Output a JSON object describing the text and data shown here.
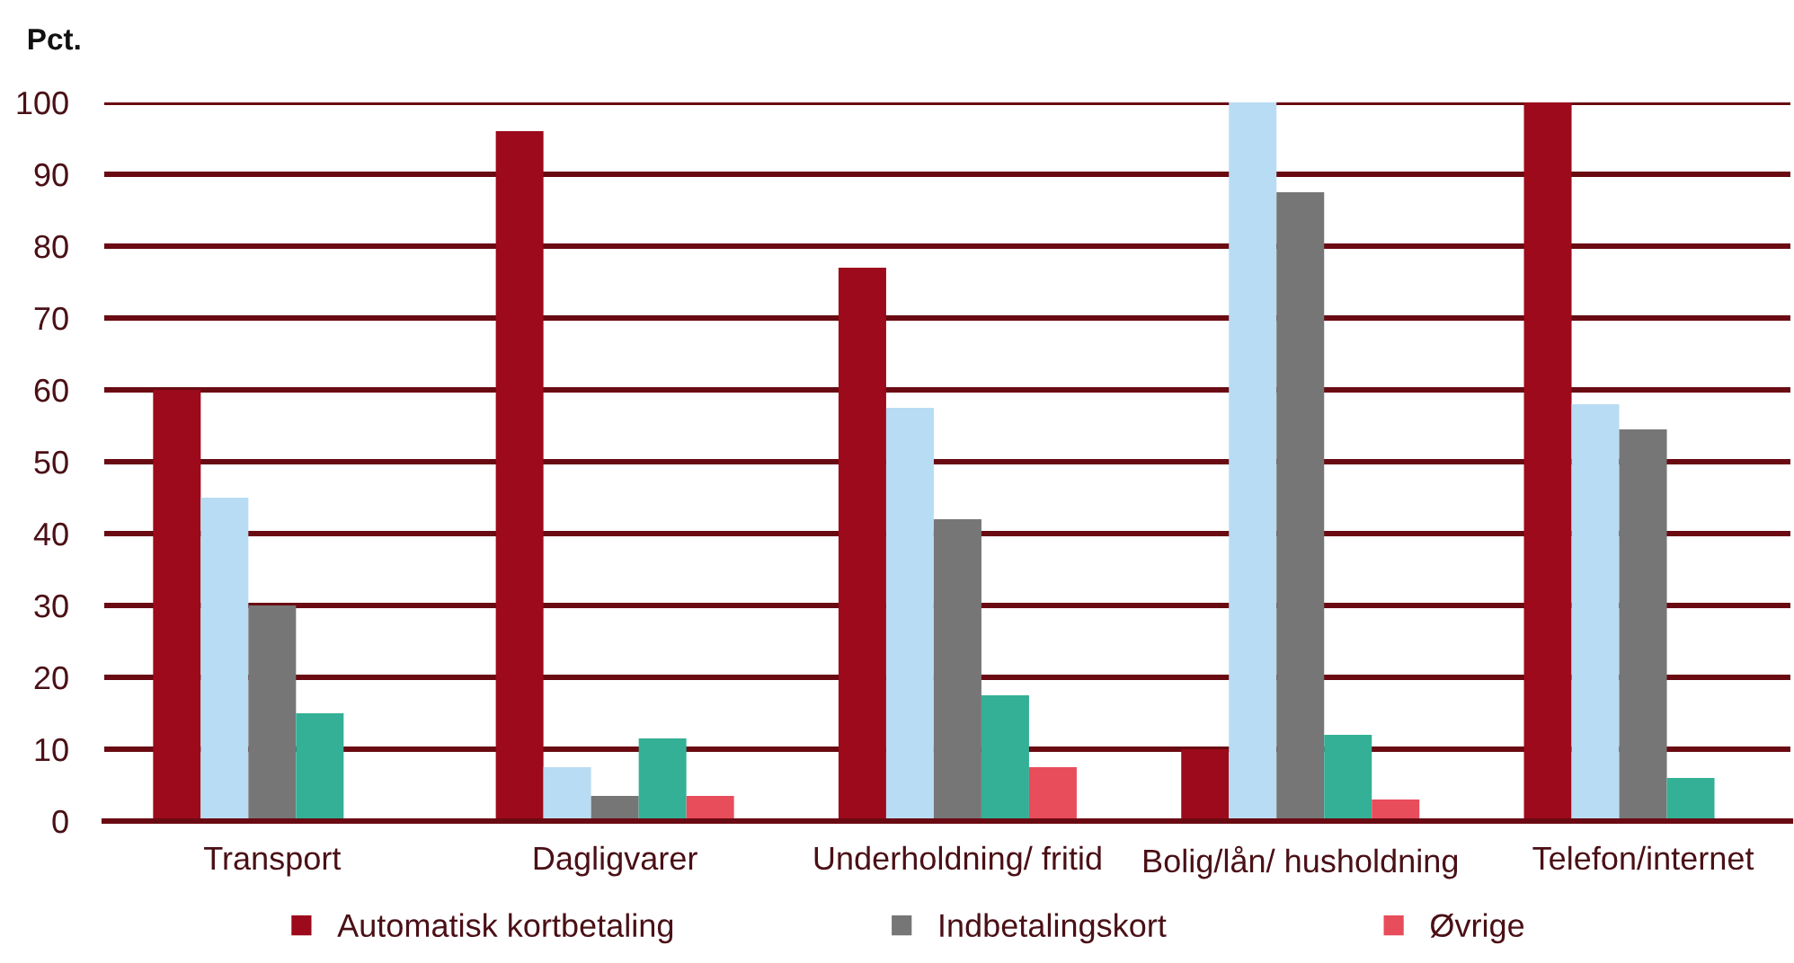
{
  "chart_data": {
    "type": "bar",
    "ylabel": "Pct.",
    "categories": [
      "Transport",
      "Dagligvarer",
      "Underholdning/ fritid",
      "Bolig/lån/ husholdning",
      "Telefon/internet"
    ],
    "series": [
      {
        "name": "Automatisk kortbetaling",
        "color": "#9c0a1b",
        "values": [
          60,
          96,
          77,
          10,
          100
        ]
      },
      {
        "color": "#b8dcf3",
        "values": [
          45,
          7.5,
          57.5,
          100,
          58
        ]
      },
      {
        "name": "Indbetalingskort",
        "color": "#767676",
        "values": [
          30,
          3.5,
          42,
          87.5,
          54.5
        ]
      },
      {
        "color": "#34b096",
        "values": [
          15,
          11.5,
          17.5,
          12,
          6
        ]
      },
      {
        "name": "Øvrige",
        "color": "#e84d5b",
        "values": [
          null,
          3.5,
          7.5,
          3,
          null
        ]
      }
    ],
    "ylim": [
      0,
      100
    ],
    "yticks": [
      0,
      10,
      20,
      30,
      40,
      50,
      60,
      70,
      80,
      90,
      100
    ],
    "grid": "y",
    "legend": "bottom"
  }
}
